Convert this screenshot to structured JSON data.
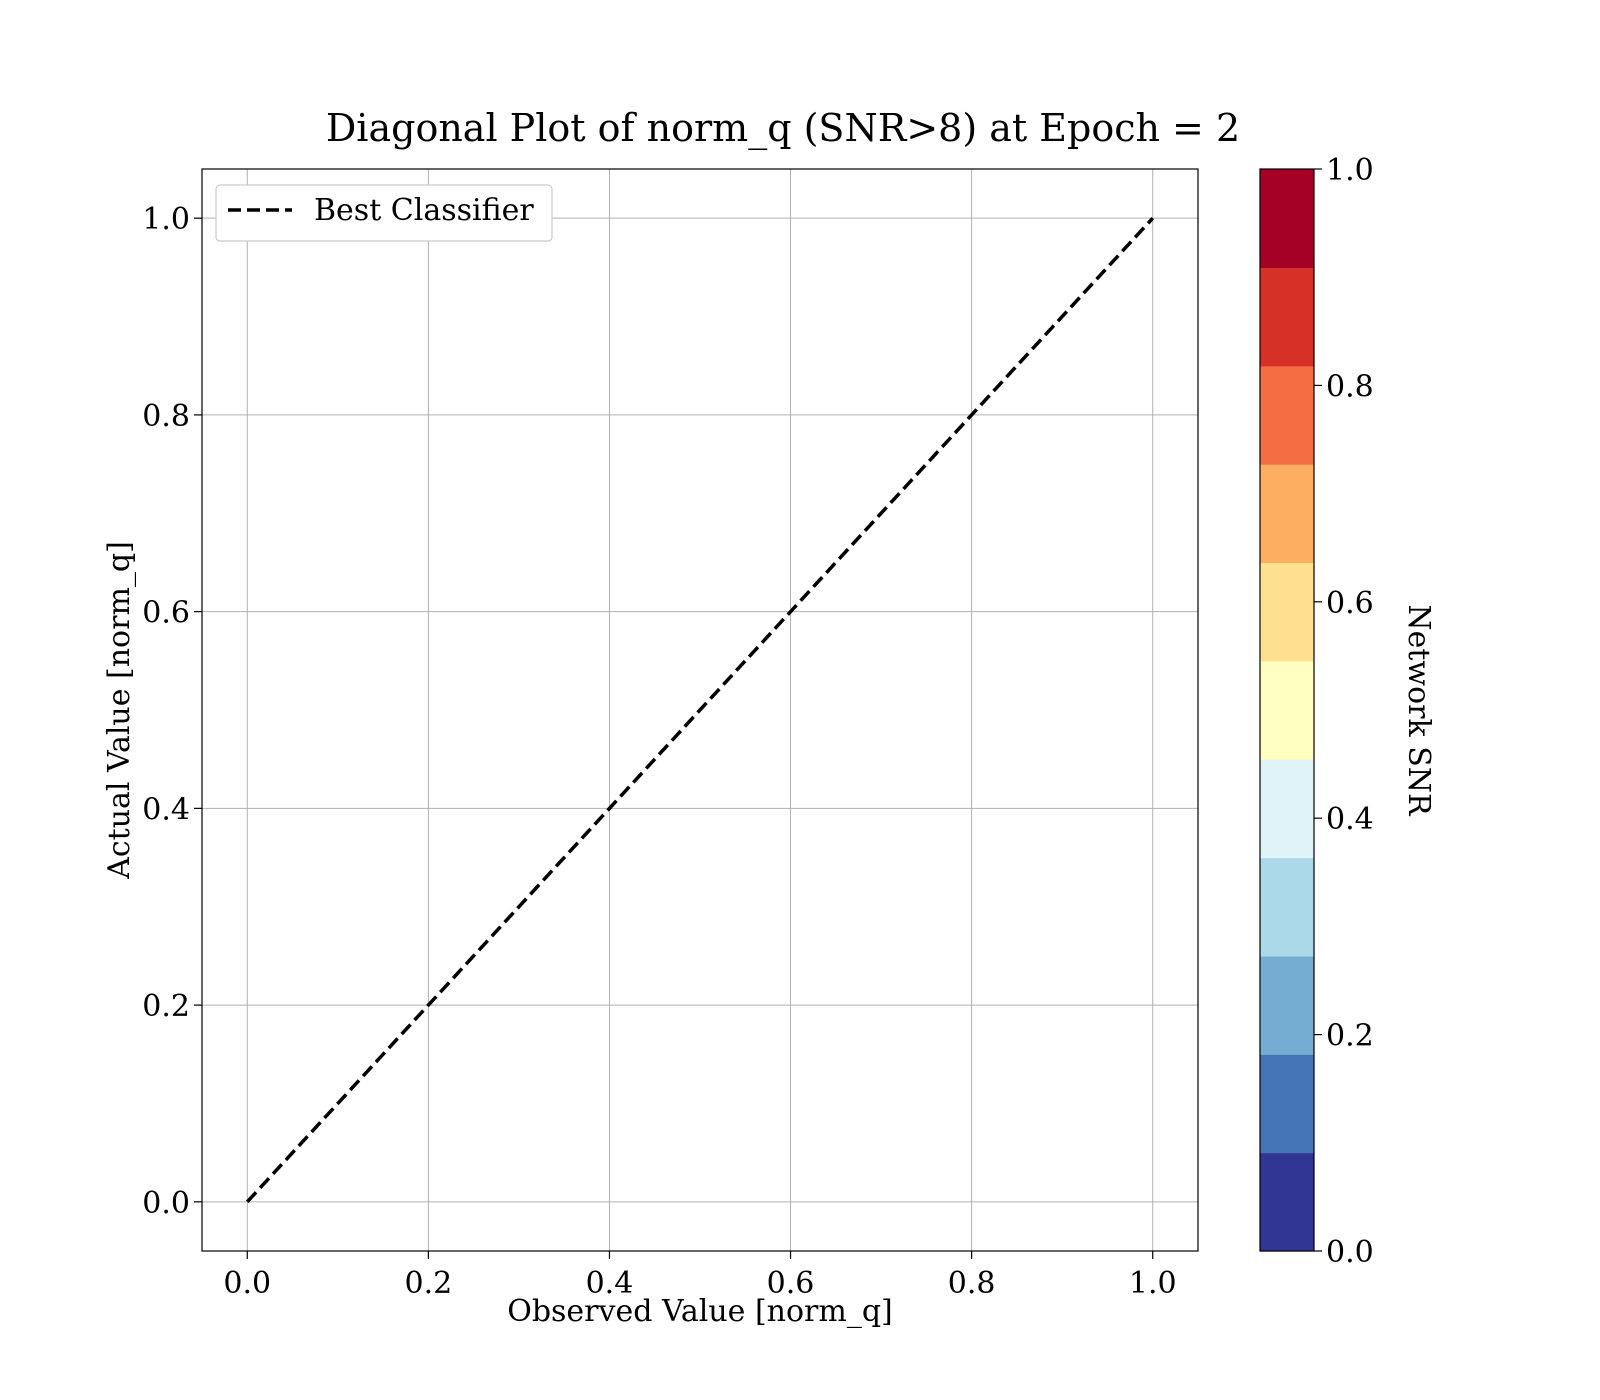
{
  "chart_data": {
    "type": "line",
    "title": "Diagonal Plot of norm_q (SNR>8) at Epoch = 2",
    "xlabel": "Observed Value [norm_q]",
    "ylabel": "Actual Value [norm_q]",
    "xlim": [
      -0.05,
      1.05
    ],
    "ylim": [
      -0.05,
      1.05
    ],
    "grid": true,
    "legend_placement": "top-left",
    "xticks": [
      "0.0",
      "0.2",
      "0.4",
      "0.6",
      "0.8",
      "1.0"
    ],
    "yticks": [
      "0.0",
      "0.2",
      "0.4",
      "0.6",
      "0.8",
      "1.0"
    ],
    "series": [
      {
        "name": "Best Classifier",
        "style": "dashed",
        "color": "#000000",
        "x": [
          0.0,
          1.0
        ],
        "y": [
          0.0,
          1.0
        ]
      }
    ],
    "colorbar": {
      "label": "Network SNR",
      "range": [
        0.0,
        1.0
      ],
      "ticks": [
        "0.0",
        "0.2",
        "0.4",
        "0.6",
        "0.8",
        "1.0"
      ],
      "colors": [
        "#313695",
        "#4575b4",
        "#74add1",
        "#abd9e9",
        "#e0f3f8",
        "#ffffbf",
        "#fee090",
        "#fdae61",
        "#f46d43",
        "#d73027",
        "#a50026"
      ]
    }
  }
}
